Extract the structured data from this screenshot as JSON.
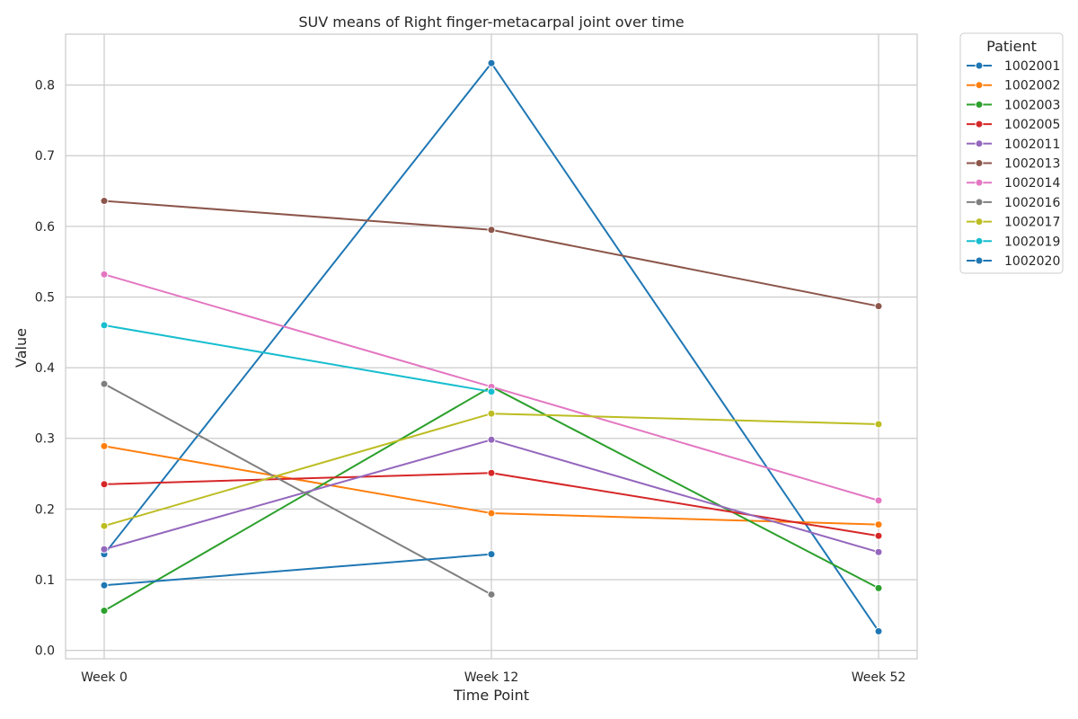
{
  "chart_data": {
    "type": "line",
    "title": "SUV means of Right finger-metacarpal joint over time",
    "xlabel": "Time Point",
    "ylabel": "Value",
    "categories": [
      "Week 0",
      "Week 12",
      "Week 52"
    ],
    "ylim": [
      -0.012,
      0.872
    ],
    "y_ticks": [
      0.0,
      0.1,
      0.2,
      0.3,
      0.4,
      0.5,
      0.6,
      0.7,
      0.8
    ],
    "y_tick_labels": [
      "0.0",
      "0.1",
      "0.2",
      "0.3",
      "0.4",
      "0.5",
      "0.6",
      "0.7",
      "0.8"
    ],
    "grid": true,
    "legend": {
      "title": "Patient",
      "placement": "outside top-right"
    },
    "series": [
      {
        "name": "1002001",
        "color": "#1f77b4",
        "values": [
          0.136,
          0.831,
          0.027
        ]
      },
      {
        "name": "1002002",
        "color": "#ff7f0e",
        "values": [
          0.289,
          0.194,
          0.178
        ]
      },
      {
        "name": "1002003",
        "color": "#2ca02c",
        "values": [
          0.056,
          0.373,
          0.088
        ]
      },
      {
        "name": "1002005",
        "color": "#d62728",
        "values": [
          0.235,
          0.251,
          0.162
        ]
      },
      {
        "name": "1002011",
        "color": "#9467bd",
        "values": [
          0.143,
          0.298,
          0.139
        ]
      },
      {
        "name": "1002013",
        "color": "#8c564b",
        "values": [
          0.636,
          0.595,
          0.487
        ]
      },
      {
        "name": "1002014",
        "color": "#e377c2",
        "values": [
          0.532,
          0.373,
          0.212
        ]
      },
      {
        "name": "1002016",
        "color": "#7f7f7f",
        "values": [
          0.377,
          0.079,
          null
        ]
      },
      {
        "name": "1002017",
        "color": "#bcbd22",
        "values": [
          0.176,
          0.335,
          0.32
        ]
      },
      {
        "name": "1002019",
        "color": "#17becf",
        "values": [
          0.46,
          0.366,
          null
        ]
      },
      {
        "name": "1002020",
        "color": "#1f77b4",
        "values": [
          0.092,
          0.136,
          null
        ]
      }
    ]
  }
}
